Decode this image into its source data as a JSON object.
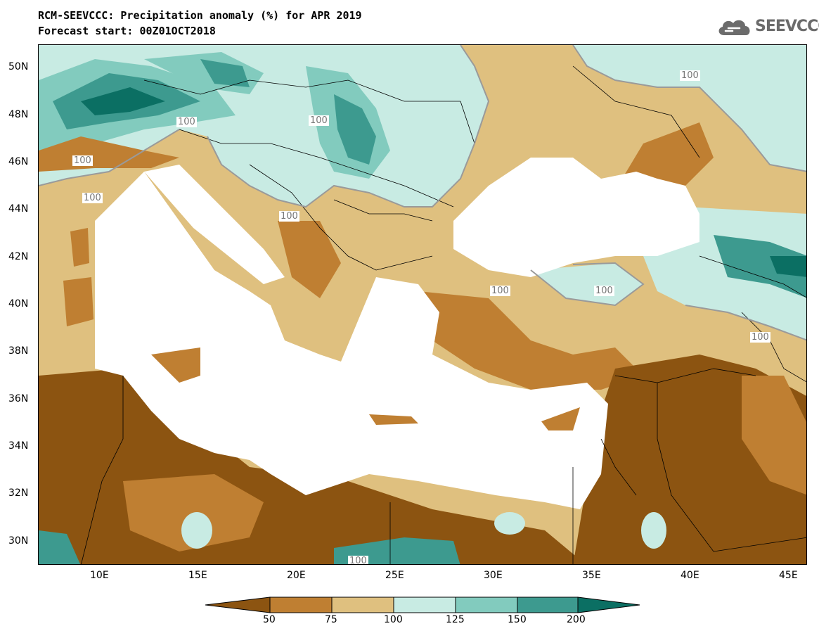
{
  "title": {
    "line1": "RCM-SEEVCCC: Precipitation anomaly (%) for APR 2019",
    "line2": "Forecast start: 00Z01OCT2018"
  },
  "logo": {
    "text": "SEEVCCC"
  },
  "axes": {
    "lat_labels": [
      "50N",
      "48N",
      "46N",
      "44N",
      "42N",
      "40N",
      "38N",
      "36N",
      "34N",
      "32N",
      "30N"
    ],
    "lon_labels": [
      "10E",
      "15E",
      "20E",
      "25E",
      "30E",
      "35E",
      "40E",
      "45E"
    ]
  },
  "contour_labels": [
    "100",
    "100",
    "100",
    "100",
    "100",
    "100",
    "100",
    "100",
    "100",
    "100",
    "100"
  ],
  "colorbar": {
    "labels": [
      "50",
      "75",
      "100",
      "125",
      "150",
      "200"
    ],
    "colors": [
      "#8c5411",
      "#bf7f32",
      "#dfc07f",
      "#c8ebe3",
      "#82cbbe",
      "#3d9a8f",
      "#0b6f63"
    ]
  },
  "colors": {
    "sea": "#ffffff",
    "very_dry": "#8c5411",
    "dry": "#bf7f32",
    "slightly_dry": "#dfc07f",
    "slightly_wet": "#c8ebe3",
    "wet": "#82cbbe",
    "very_wet": "#3d9a8f",
    "extreme_wet": "#0b6f63"
  }
}
